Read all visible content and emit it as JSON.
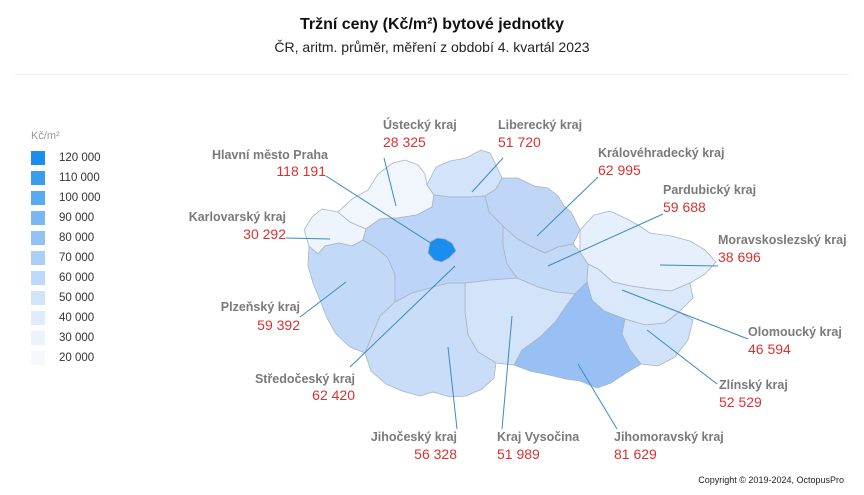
{
  "title": "Tržní ceny  (Kč/m²) bytové jednotky",
  "subtitle": "ČR, aritm. průměr, měření z období 4. kvartál 2023",
  "legend": {
    "title": "Kč/m²",
    "items": [
      {
        "label": "120 000",
        "color": "#1a8ef0"
      },
      {
        "label": "110 000",
        "color": "#3a9cf1"
      },
      {
        "label": "100 000",
        "color": "#5aa9f3"
      },
      {
        "label": "90 000",
        "color": "#78b6f4"
      },
      {
        "label": "80 000",
        "color": "#93c3f6"
      },
      {
        "label": "70 000",
        "color": "#aacff7"
      },
      {
        "label": "60 000",
        "color": "#bfdaf8"
      },
      {
        "label": "50 000",
        "color": "#d1e4fa"
      },
      {
        "label": "40 000",
        "color": "#e0ecfb"
      },
      {
        "label": "30 000",
        "color": "#ecf3fc"
      },
      {
        "label": "20 000",
        "color": "#f5f9fe"
      }
    ]
  },
  "regions": [
    {
      "name": "Hlavní město Praha",
      "value": "118 191",
      "color": "#1a8ef0"
    },
    {
      "name": "Ústecký kraj",
      "value": "28 325",
      "color": "#f1f6fd"
    },
    {
      "name": "Liberecký kraj",
      "value": "51 720",
      "color": "#d3e4fa"
    },
    {
      "name": "Královéhradecký kraj",
      "value": "62 995",
      "color": "#bfd6f7"
    },
    {
      "name": "Pardubický kraj",
      "value": "59 688",
      "color": "#c3d9f8"
    },
    {
      "name": "Moravskoslezský kraj",
      "value": "38 696",
      "color": "#e6effc"
    },
    {
      "name": "Olomoucký kraj",
      "value": "46 594",
      "color": "#d9e8fa"
    },
    {
      "name": "Zlínský kraj",
      "value": "52 529",
      "color": "#d1e3fa"
    },
    {
      "name": "Jihomoravský kraj",
      "value": "81 629",
      "color": "#98c0f5"
    },
    {
      "name": "Kraj Vysočina",
      "value": "51 989",
      "color": "#d2e3fa"
    },
    {
      "name": "Jihočeský kraj",
      "value": "56 328",
      "color": "#c9ddf9"
    },
    {
      "name": "Středočeský kraj",
      "value": "62 420",
      "color": "#bcd4f7"
    },
    {
      "name": "Plzeňský kraj",
      "value": "59 392",
      "color": "#c3d9f8"
    },
    {
      "name": "Karlovarský kraj",
      "value": "30 292",
      "color": "#eef4fc"
    }
  ],
  "copyright": "Copyright © 2019-2024, OctopusPro"
}
